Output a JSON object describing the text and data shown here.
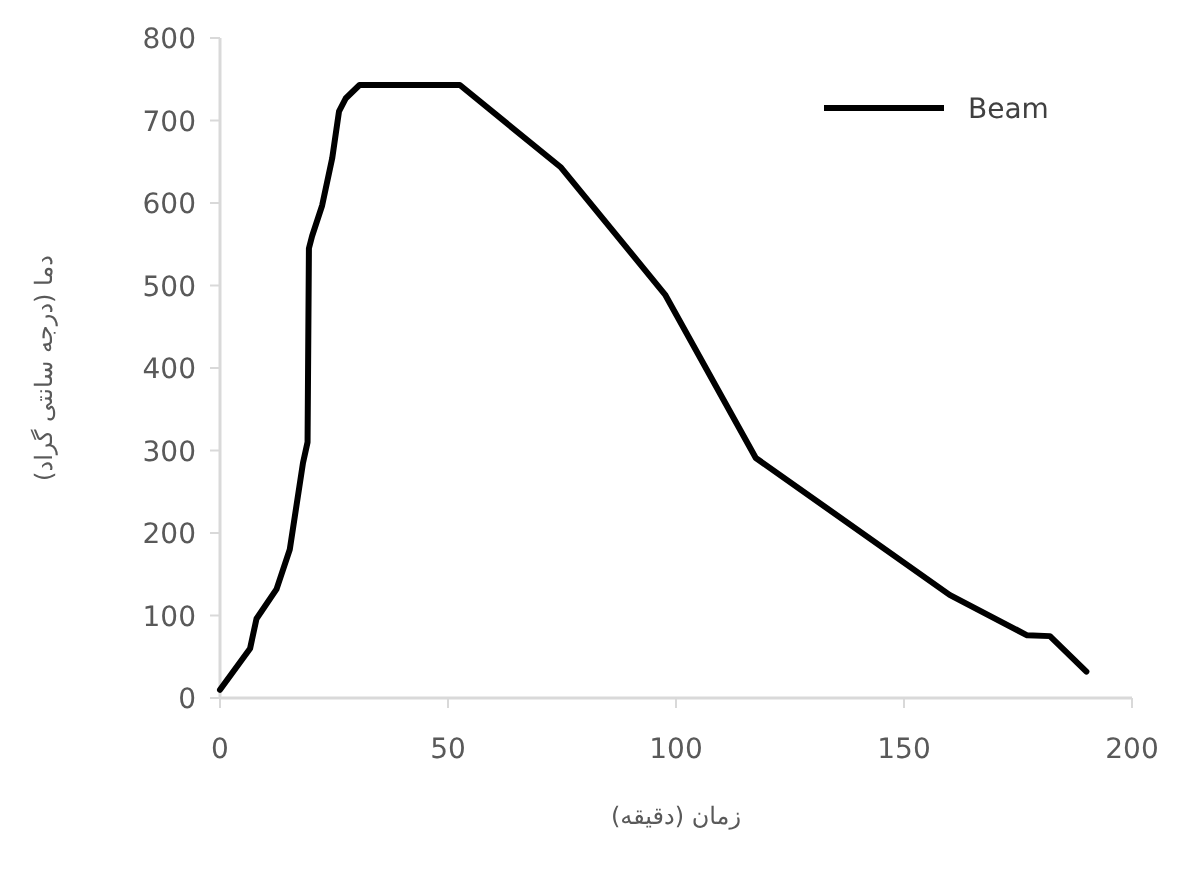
{
  "chart_data": {
    "type": "line",
    "xlabel": "زمان (دقیقه)",
    "ylabel": "دما (درجه سانتی گراد)",
    "xlim": [
      0,
      200
    ],
    "xticks": [
      0,
      50,
      100,
      150,
      200
    ],
    "ylim": [
      0,
      800
    ],
    "yticks": [
      0,
      100,
      200,
      300,
      400,
      500,
      600,
      700,
      800
    ],
    "grid": false,
    "legend": "top right",
    "marker": "none",
    "line_style": "solid",
    "series": [
      {
        "name": "Beam",
        "color": "#000000",
        "x": [
          0,
          6.6,
          8,
          12.4,
          15.3,
          18.2,
          19.2,
          19.5,
          20.2,
          22.4,
          24.6,
          26.1,
          27.6,
          30.6,
          52.6,
          74.8,
          97.6,
          117.5,
          160,
          177,
          182,
          190
        ],
        "values": [
          10,
          60,
          96,
          132,
          180,
          285,
          310,
          545,
          560,
          597,
          654,
          711,
          727,
          743,
          743,
          643,
          489,
          291,
          125,
          76,
          75,
          32
        ]
      }
    ]
  }
}
